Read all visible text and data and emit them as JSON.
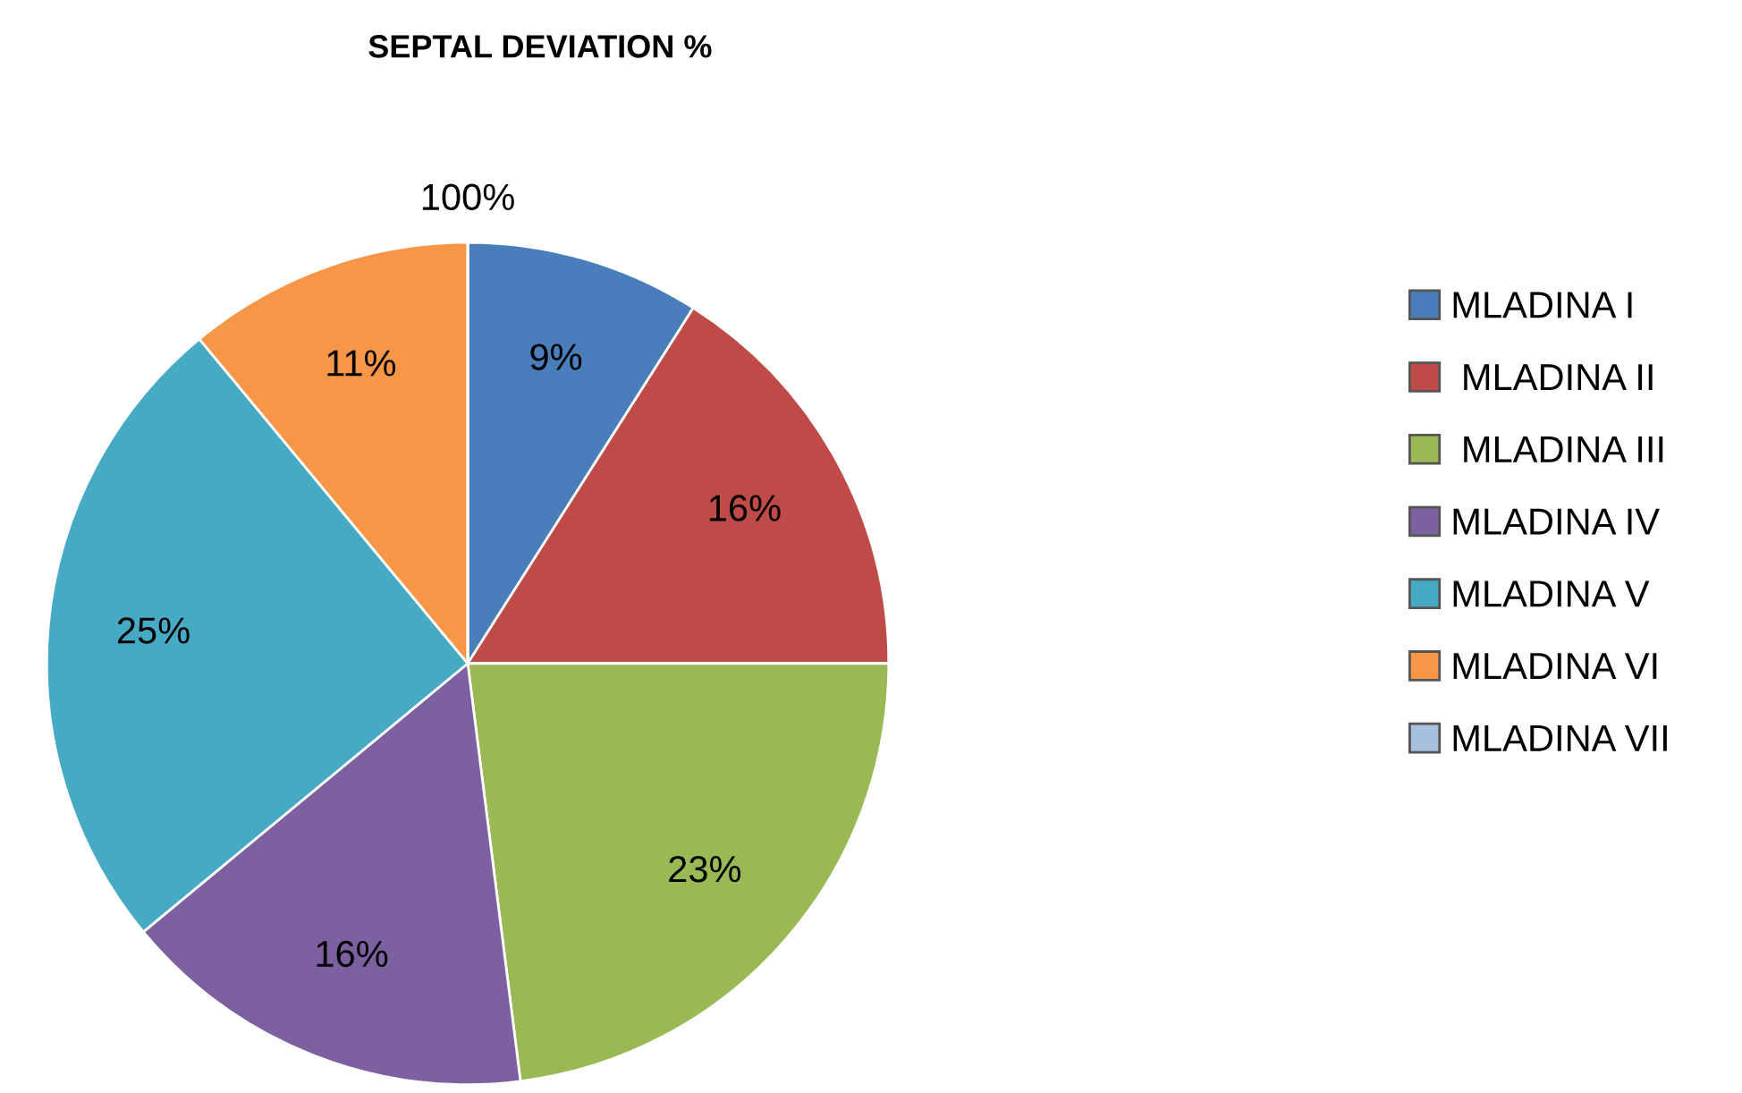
{
  "chart_data": {
    "type": "pie",
    "title": "SEPTAL DEVIATION %",
    "categories": [
      "MLADINA I",
      " MLADINA II",
      " MLADINA III",
      "MLADINA IV",
      "MLADINA V",
      "MLADINA VI",
      "MLADINA VII"
    ],
    "values": [
      9,
      16,
      23,
      16,
      25,
      11,
      0
    ],
    "value_labels": [
      "9%",
      "16%",
      "23%",
      "16%",
      "25%",
      "11%",
      null
    ],
    "annotations": [
      "100%"
    ],
    "colors": [
      "#4a7ebb",
      "#be4b48",
      "#98b954",
      "#7d60a0",
      "#46aac5",
      "#f79646",
      "#a7c0de"
    ],
    "legend": "right"
  }
}
